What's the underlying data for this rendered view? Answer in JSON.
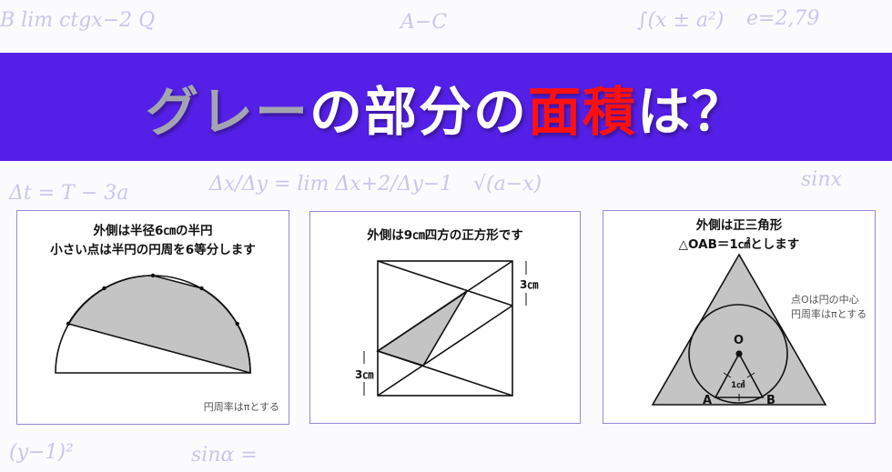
{
  "background": {
    "formulas": [
      "B  lim ctgx−2 Q",
      "∫(x ± a²)",
      "e=2,79",
      "A−C",
      "Δt = T − 3a",
      "Δx/Δy = lim Δx+2/Δy−1",
      "sinx",
      "(y−1)²",
      "sinα =",
      "√(a−x)"
    ]
  },
  "title": {
    "part_gray": "グレー",
    "part_white1": "の部分の",
    "part_red": "面積",
    "part_white2": "は？"
  },
  "colors": {
    "banner": "#5420e8",
    "gray_text": "#a4a4b0",
    "red_text": "#ff1010",
    "shade": "#c4c4c4"
  },
  "panels": [
    {
      "line1": "外側は半径6㎝の半円",
      "line2": "小さい点は半円の円周を6等分します",
      "note": "円周率はπとする"
    },
    {
      "line1": "外側は9㎝四方の正方形です",
      "label_top": "3㎝",
      "label_bottom": "3㎝"
    },
    {
      "line1": "外側は正三角形",
      "line2": "△OAB＝1㎠とします",
      "note1": "点Oは円の中心",
      "note2": "円周率はπとする",
      "point_o": "O",
      "point_a": "A",
      "point_b": "B",
      "area_label": "1㎠"
    }
  ]
}
